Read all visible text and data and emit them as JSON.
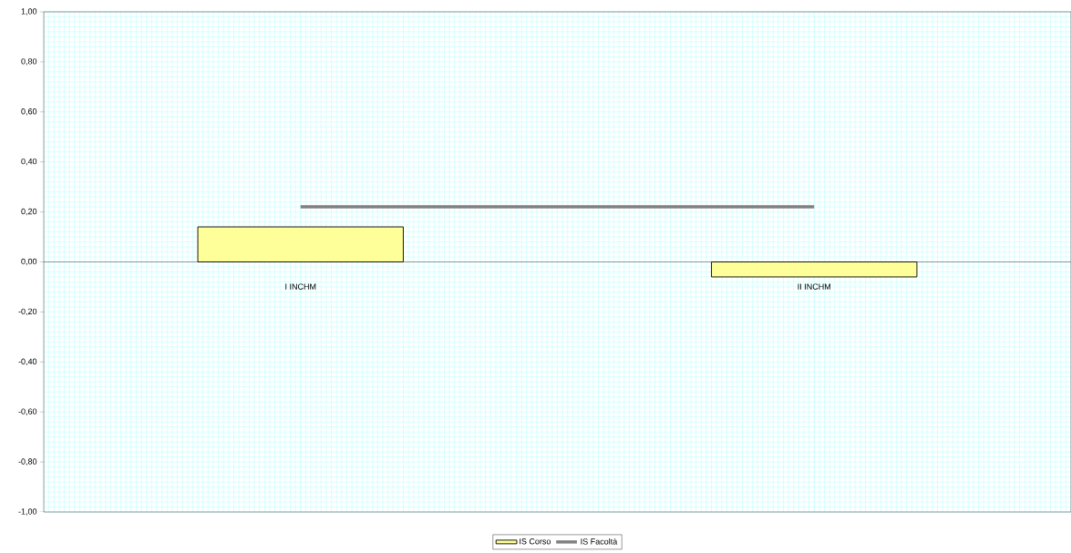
{
  "chart_data": {
    "type": "bar",
    "categories": [
      "I INCHM",
      "II INCHM"
    ],
    "series": [
      {
        "name": "IS Corso",
        "color": "#ffff99",
        "values": [
          0.14,
          -0.06
        ]
      },
      {
        "name": "IS Facoltà",
        "type": "line",
        "color": "#808080",
        "values": [
          0.22,
          0.22
        ]
      }
    ],
    "ylim": [
      -1,
      1
    ],
    "yticks": [
      {
        "value": -1,
        "label": "-1,00"
      },
      {
        "value": -0.8,
        "label": "-0,80"
      },
      {
        "value": -0.6,
        "label": "-0,60"
      },
      {
        "value": -0.4,
        "label": "-0,40"
      },
      {
        "value": -0.2,
        "label": "-0,20"
      },
      {
        "value": 0,
        "label": "0,00"
      },
      {
        "value": 0.2,
        "label": "0,20"
      },
      {
        "value": 0.4,
        "label": "0,40"
      },
      {
        "value": 0.6,
        "label": "0,60"
      },
      {
        "value": 0.8,
        "label": "0,80"
      },
      {
        "value": 1,
        "label": "1,00"
      }
    ],
    "grid": true,
    "legend": "bottom"
  }
}
